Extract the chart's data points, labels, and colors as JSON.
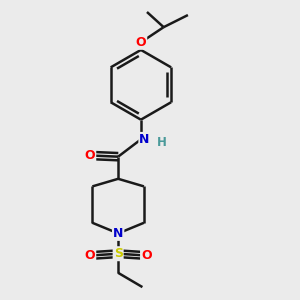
{
  "bg_color": "#ebebeb",
  "line_color": "#1a1a1a",
  "bond_width": 1.8,
  "atom_colors": {
    "O": "#ff0000",
    "N": "#0000cc",
    "S": "#cccc00",
    "H": "#4a9a9a",
    "C": "#1a1a1a"
  }
}
